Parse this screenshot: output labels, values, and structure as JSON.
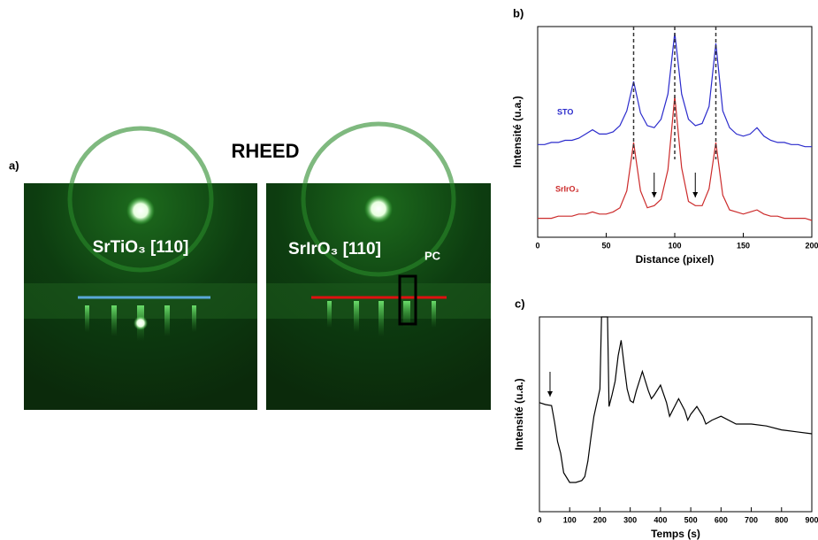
{
  "panel_a": {
    "label": "a)",
    "title": "RHEED",
    "image_1_caption": "SrTiO₃ [110]",
    "image_2_caption": "SrIrO₃ [110]",
    "image_2_caption_subscript": "PC"
  },
  "chart_data": [
    {
      "type": "line",
      "label": "b)",
      "xlabel": "Distance (pixel)",
      "ylabel": "Intensité (u.a.)",
      "x": [
        0,
        5,
        10,
        15,
        20,
        25,
        30,
        35,
        40,
        45,
        50,
        55,
        60,
        65,
        70,
        75,
        80,
        85,
        90,
        95,
        100,
        105,
        110,
        115,
        120,
        125,
        130,
        135,
        140,
        145,
        150,
        155,
        160,
        165,
        170,
        175,
        180,
        185,
        190,
        195,
        200
      ],
      "series": [
        {
          "name": "STO",
          "color": "#2b2bcc",
          "values": [
            4.4,
            4.4,
            4.5,
            4.5,
            4.6,
            4.6,
            4.7,
            4.9,
            5.1,
            4.9,
            4.9,
            5.0,
            5.3,
            6.0,
            7.4,
            5.9,
            5.3,
            5.2,
            5.6,
            6.8,
            9.7,
            6.8,
            5.6,
            5.3,
            5.4,
            6.2,
            9.2,
            6.0,
            5.2,
            4.9,
            4.8,
            4.9,
            5.2,
            4.8,
            4.6,
            4.5,
            4.5,
            4.4,
            4.4,
            4.3,
            4.3
          ]
        },
        {
          "name": "SrIrO₃",
          "color": "#cc2b2b",
          "values": [
            0.9,
            0.9,
            0.9,
            1.0,
            1.0,
            1.0,
            1.1,
            1.1,
            1.2,
            1.1,
            1.1,
            1.2,
            1.4,
            2.2,
            4.5,
            2.2,
            1.4,
            1.5,
            1.8,
            3.2,
            6.7,
            3.3,
            1.7,
            1.5,
            1.5,
            2.3,
            4.5,
            2.0,
            1.3,
            1.2,
            1.1,
            1.2,
            1.3,
            1.1,
            1.0,
            1.0,
            0.9,
            0.9,
            0.9,
            0.9,
            0.8
          ]
        }
      ],
      "guides": [
        70,
        100,
        130
      ],
      "arrows": [
        85,
        115
      ],
      "xlim": [
        0,
        200
      ],
      "xticks": [
        0,
        50,
        100,
        150,
        200
      ],
      "ylim": [
        0,
        10
      ]
    },
    {
      "type": "line",
      "label": "c)",
      "xlabel": "Temps (s)",
      "ylabel": "Intensité (u.a.)",
      "color": "#000000",
      "x": [
        0,
        20,
        40,
        50,
        60,
        70,
        80,
        100,
        120,
        140,
        150,
        160,
        170,
        180,
        190,
        200,
        205,
        225,
        230,
        240,
        250,
        260,
        270,
        280,
        290,
        300,
        310,
        320,
        340,
        360,
        370,
        380,
        400,
        420,
        430,
        450,
        460,
        480,
        490,
        500,
        520,
        540,
        550,
        570,
        600,
        650,
        700,
        750,
        800,
        850,
        900
      ],
      "values": [
        5.6,
        5.5,
        5.45,
        4.6,
        3.6,
        3.0,
        2.0,
        1.5,
        1.5,
        1.6,
        1.8,
        2.6,
        3.8,
        4.9,
        5.6,
        6.3,
        10,
        10,
        5.4,
        6.0,
        6.7,
        8.0,
        8.8,
        7.5,
        6.3,
        5.7,
        5.6,
        6.2,
        7.2,
        6.2,
        5.8,
        6.0,
        6.5,
        5.6,
        4.9,
        5.5,
        5.8,
        5.2,
        4.7,
        5.0,
        5.4,
        4.9,
        4.5,
        4.7,
        4.9,
        4.5,
        4.5,
        4.4,
        4.2,
        4.1,
        4.0
      ],
      "arrows": [
        35
      ],
      "xlim": [
        0,
        900
      ],
      "xticks": [
        0,
        100,
        200,
        300,
        400,
        500,
        600,
        700,
        800,
        900
      ],
      "ylim": [
        0,
        10
      ]
    }
  ]
}
